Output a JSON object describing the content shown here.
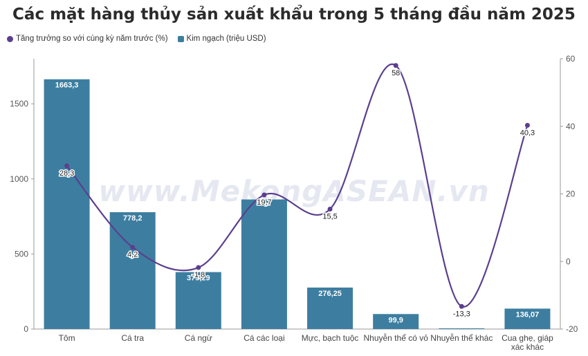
{
  "chart_data": {
    "type": "bar",
    "title": "Các mặt hàng thủy sản xuất khẩu trong 5 tháng đầu năm 2025",
    "categories": [
      "Tôm",
      "Cá tra",
      "Cá ngừ",
      "Cá các loại",
      "Mực, bạch tuộc",
      "Nhuyễn thể có vỏ",
      "Nhuyễn thể khác",
      "Cua ghẹ, giáp xác khác"
    ],
    "series": [
      {
        "name": "Kim ngạch (triệu USD)",
        "type": "bar",
        "axis": "left",
        "color": "#3d7ea0",
        "values": [
          1663.3,
          778.2,
          379.29,
          863.0,
          276.25,
          99.9,
          3.0,
          136.07
        ],
        "labels": [
          "1663,3",
          "778,2",
          "379,29",
          "",
          "276,25",
          "99,9",
          "",
          "136,07"
        ]
      },
      {
        "name": "Tăng trưởng so với cùng kỳ năm trước (%)",
        "type": "line",
        "axis": "right",
        "color": "#5b3f8e",
        "values": [
          28.3,
          4.2,
          -1.8,
          19.7,
          15.5,
          58,
          -13.3,
          40.3
        ],
        "labels": [
          "28,3",
          "4,2",
          "-1,8",
          "19,7",
          "15,5",
          "58",
          "-13,3",
          "40,3"
        ]
      }
    ],
    "y_left": {
      "min": 0,
      "max": 1800,
      "ticks": [
        0,
        500,
        1000,
        1500
      ]
    },
    "y_right": {
      "min": -20,
      "max": 60,
      "ticks": [
        -20,
        0,
        20,
        40,
        60
      ]
    },
    "grid": false,
    "legend_position": "top-left"
  },
  "legend": {
    "line_label": "Tăng trưởng so với cùng kỳ năm trước (%)",
    "bar_label": "Kim ngạch (triệu USD)"
  },
  "watermark": "www.MekongASEAN.vn"
}
